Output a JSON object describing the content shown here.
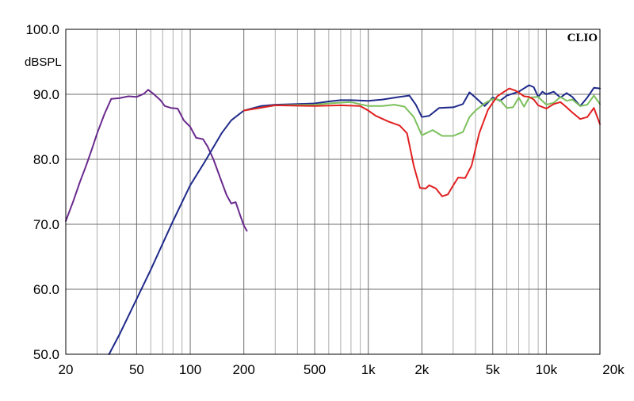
{
  "chart_data": {
    "type": "line",
    "title": "",
    "xlabel": "",
    "ylabel": "dBSPL",
    "brand_label": "CLIO",
    "x_scale": "log",
    "xlim": [
      20,
      20000
    ],
    "ylim": [
      50,
      100
    ],
    "grid": true,
    "legend": "none",
    "x_major_ticks": [
      {
        "value": 20,
        "label": "20"
      },
      {
        "value": 50,
        "label": "50"
      },
      {
        "value": 100,
        "label": "100"
      },
      {
        "value": 200,
        "label": "200"
      },
      {
        "value": 500,
        "label": "500"
      },
      {
        "value": 1000,
        "label": "1k"
      },
      {
        "value": 2000,
        "label": "2k"
      },
      {
        "value": 5000,
        "label": "5k"
      },
      {
        "value": 10000,
        "label": "10k"
      },
      {
        "value": 20000,
        "label": "20k"
      }
    ],
    "x_minor_ticks": [
      30,
      40,
      60,
      70,
      80,
      90,
      300,
      400,
      600,
      700,
      800,
      900,
      3000,
      4000,
      6000,
      7000,
      8000,
      9000
    ],
    "y_ticks": [
      {
        "value": 100,
        "label": "100.0"
      },
      {
        "value": 90,
        "label": "90.0"
      },
      {
        "value": 80,
        "label": "80.0"
      },
      {
        "value": 70,
        "label": "70.0"
      },
      {
        "value": 60,
        "label": "60.0"
      },
      {
        "value": 50,
        "label": "50.0"
      }
    ],
    "series": [
      {
        "color": "#6a2a8e",
        "points": [
          [
            20,
            70.5
          ],
          [
            22,
            73.5
          ],
          [
            24,
            76.5
          ],
          [
            26,
            79
          ],
          [
            28,
            81.5
          ],
          [
            30,
            84
          ],
          [
            33,
            87
          ],
          [
            36,
            89.3
          ],
          [
            40,
            89.4
          ],
          [
            45,
            89.7
          ],
          [
            50,
            89.6
          ],
          [
            55,
            90.1
          ],
          [
            58,
            90.7
          ],
          [
            62,
            90.1
          ],
          [
            68,
            89.1
          ],
          [
            72,
            88.2
          ],
          [
            78,
            87.9
          ],
          [
            85,
            87.8
          ],
          [
            92,
            86
          ],
          [
            100,
            85
          ],
          [
            108,
            83.3
          ],
          [
            118,
            83.1
          ],
          [
            125,
            82
          ],
          [
            135,
            80
          ],
          [
            148,
            77
          ],
          [
            160,
            74.5
          ],
          [
            170,
            73.2
          ],
          [
            180,
            73.4
          ],
          [
            190,
            71.5
          ],
          [
            200,
            69.8
          ],
          [
            208,
            69
          ]
        ]
      },
      {
        "color": "#1f2a8a",
        "points": [
          [
            35,
            50
          ],
          [
            40,
            53
          ],
          [
            50,
            58.5
          ],
          [
            60,
            63
          ],
          [
            70,
            67
          ],
          [
            80,
            70.5
          ],
          [
            100,
            76
          ],
          [
            120,
            79.5
          ],
          [
            150,
            84
          ],
          [
            170,
            86
          ],
          [
            200,
            87.5
          ],
          [
            250,
            88.2
          ],
          [
            300,
            88.4
          ],
          [
            400,
            88.5
          ],
          [
            500,
            88.6
          ],
          [
            600,
            88.9
          ],
          [
            700,
            89.1
          ],
          [
            800,
            89.1
          ],
          [
            1000,
            89
          ],
          [
            1200,
            89.2
          ],
          [
            1500,
            89.6
          ],
          [
            1700,
            89.8
          ],
          [
            1850,
            88.4
          ],
          [
            2000,
            86.5
          ],
          [
            2200,
            86.7
          ],
          [
            2500,
            87.9
          ],
          [
            3000,
            88
          ],
          [
            3400,
            88.5
          ],
          [
            3700,
            90.3
          ],
          [
            4000,
            89.5
          ],
          [
            4500,
            88.2
          ],
          [
            5000,
            89.5
          ],
          [
            5500,
            89
          ],
          [
            6000,
            89.8
          ],
          [
            7000,
            90.4
          ],
          [
            8000,
            91.4
          ],
          [
            8500,
            91.1
          ],
          [
            9000,
            89.6
          ],
          [
            9500,
            90.4
          ],
          [
            10000,
            90
          ],
          [
            11000,
            90.4
          ],
          [
            12000,
            89.5
          ],
          [
            13000,
            90.2
          ],
          [
            14000,
            89.6
          ],
          [
            15500,
            88.2
          ],
          [
            17000,
            89.5
          ],
          [
            18500,
            91
          ],
          [
            20000,
            90.9
          ]
        ]
      },
      {
        "color": "#7cc05c",
        "points": [
          [
            200,
            87.5
          ],
          [
            300,
            88.3
          ],
          [
            500,
            88.4
          ],
          [
            600,
            88.6
          ],
          [
            800,
            88.8
          ],
          [
            1000,
            88.2
          ],
          [
            1200,
            88.2
          ],
          [
            1400,
            88.4
          ],
          [
            1600,
            88.1
          ],
          [
            1800,
            86.5
          ],
          [
            2000,
            83.7
          ],
          [
            2300,
            84.5
          ],
          [
            2600,
            83.6
          ],
          [
            3000,
            83.6
          ],
          [
            3400,
            84.2
          ],
          [
            3700,
            86.5
          ],
          [
            4000,
            87.5
          ],
          [
            4500,
            88.6
          ],
          [
            5000,
            89.3
          ],
          [
            5500,
            89.1
          ],
          [
            6000,
            87.9
          ],
          [
            6500,
            88
          ],
          [
            7000,
            89.5
          ],
          [
            7500,
            88.1
          ],
          [
            8000,
            89.5
          ],
          [
            9000,
            89.6
          ],
          [
            10000,
            88.4
          ],
          [
            11000,
            88.7
          ],
          [
            12000,
            89.6
          ],
          [
            13000,
            89
          ],
          [
            14000,
            89.2
          ],
          [
            15500,
            88.2
          ],
          [
            17000,
            88.4
          ],
          [
            18500,
            89.8
          ],
          [
            20000,
            88.5
          ]
        ]
      },
      {
        "color": "#e02020",
        "points": [
          [
            200,
            87.5
          ],
          [
            300,
            88.3
          ],
          [
            500,
            88.2
          ],
          [
            700,
            88.3
          ],
          [
            900,
            88.2
          ],
          [
            1000,
            87.5
          ],
          [
            1100,
            86.7
          ],
          [
            1300,
            85.8
          ],
          [
            1500,
            85.2
          ],
          [
            1650,
            84
          ],
          [
            1800,
            79
          ],
          [
            1950,
            75.6
          ],
          [
            2100,
            75.5
          ],
          [
            2200,
            76
          ],
          [
            2400,
            75.5
          ],
          [
            2600,
            74.3
          ],
          [
            2800,
            74.6
          ],
          [
            3000,
            76
          ],
          [
            3200,
            77.2
          ],
          [
            3500,
            77.1
          ],
          [
            3800,
            79
          ],
          [
            4200,
            84
          ],
          [
            4700,
            87.6
          ],
          [
            5300,
            89.7
          ],
          [
            5800,
            90.4
          ],
          [
            6200,
            90.9
          ],
          [
            6800,
            90.5
          ],
          [
            7500,
            89.7
          ],
          [
            8000,
            89.6
          ],
          [
            8500,
            89.2
          ],
          [
            9000,
            88.3
          ],
          [
            10000,
            87.8
          ],
          [
            11000,
            88.5
          ],
          [
            12000,
            88.8
          ],
          [
            13000,
            88
          ],
          [
            14000,
            87.2
          ],
          [
            15500,
            86.2
          ],
          [
            17000,
            86.5
          ],
          [
            18500,
            87.9
          ],
          [
            20000,
            85.4
          ]
        ]
      }
    ]
  }
}
